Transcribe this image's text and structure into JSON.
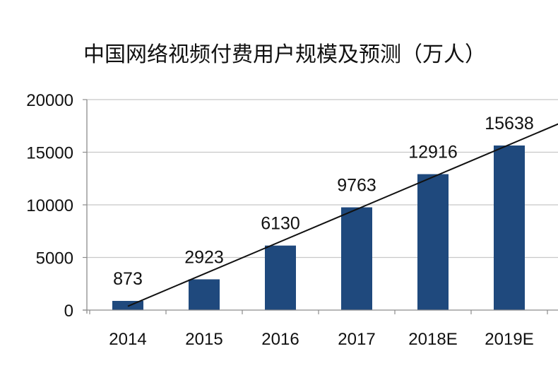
{
  "chart_data": {
    "type": "bar",
    "title": "中国网络视频付费用户规模及预测（万人）",
    "categories": [
      "2014",
      "2015",
      "2016",
      "2017",
      "2018E",
      "2019E"
    ],
    "values": [
      873,
      2923,
      6130,
      9763,
      12916,
      15638
    ],
    "ylim": [
      0,
      20000
    ],
    "yticks": [
      0,
      5000,
      10000,
      15000,
      20000
    ],
    "data_labels": [
      "873",
      "2923",
      "6130",
      "9763",
      "12916",
      "15638"
    ],
    "trendline": true,
    "grid": true,
    "bar_color": "#1f497d",
    "grid_color": "#c8c8c8",
    "trend_color": "#111111"
  }
}
